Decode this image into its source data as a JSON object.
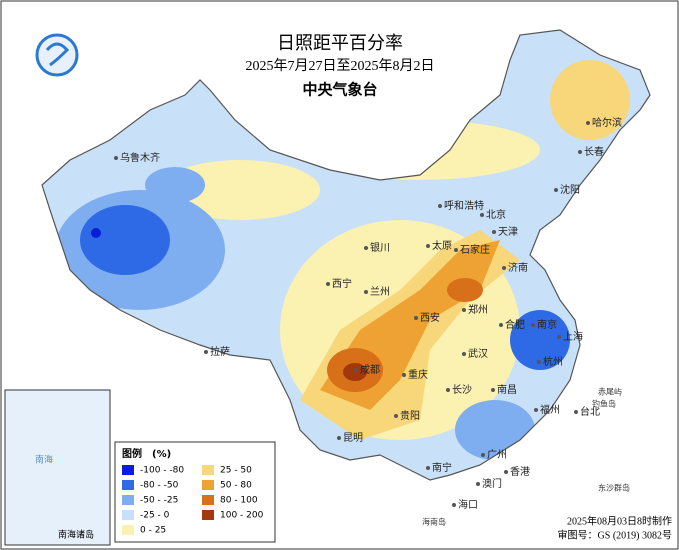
{
  "header": {
    "title": "日照距平百分率",
    "subtitle": "2025年7月27日至2025年8月2日",
    "issuer": "中央气象台"
  },
  "cities": [
    "乌鲁木齐",
    "呼和浩特",
    "哈尔滨",
    "长春",
    "沈阳",
    "北京",
    "天津",
    "石家庄",
    "太原",
    "济南",
    "银川",
    "西宁",
    "兰州",
    "郑州",
    "西安",
    "合肥",
    "南京",
    "上海",
    "拉萨",
    "成都",
    "重庆",
    "武汉",
    "杭州",
    "长沙",
    "南昌",
    "福州",
    "台北",
    "贵阳",
    "昆明",
    "南宁",
    "广州",
    "香港",
    "澳门",
    "海口"
  ],
  "islands": [
    "赤尾屿",
    "钓鱼岛",
    "东沙群岛",
    "海南岛"
  ],
  "inset": {
    "title": "南海诸岛",
    "sea": "南海"
  },
  "legend": {
    "title": "图例",
    "unit": "(%)",
    "items": [
      {
        "label": "-100 - -80",
        "color": "#0a1ed8"
      },
      {
        "label": "-80 - -50",
        "color": "#2f6ae6"
      },
      {
        "label": "-50 - -25",
        "color": "#7eaef0"
      },
      {
        "label": "-25 - 0",
        "color": "#c9e1f8"
      },
      {
        "label": "0 - 25",
        "color": "#fbf1b0"
      },
      {
        "label": "25 - 50",
        "color": "#f8d67a"
      },
      {
        "label": "50 - 80",
        "color": "#eea233"
      },
      {
        "label": "80 - 100",
        "color": "#d8701a"
      },
      {
        "label": "100 - 200",
        "color": "#a3380c"
      }
    ]
  },
  "footer": {
    "made": "2025年08月03日8时制作",
    "approval": "审图号：GS (2019) 3082号"
  }
}
